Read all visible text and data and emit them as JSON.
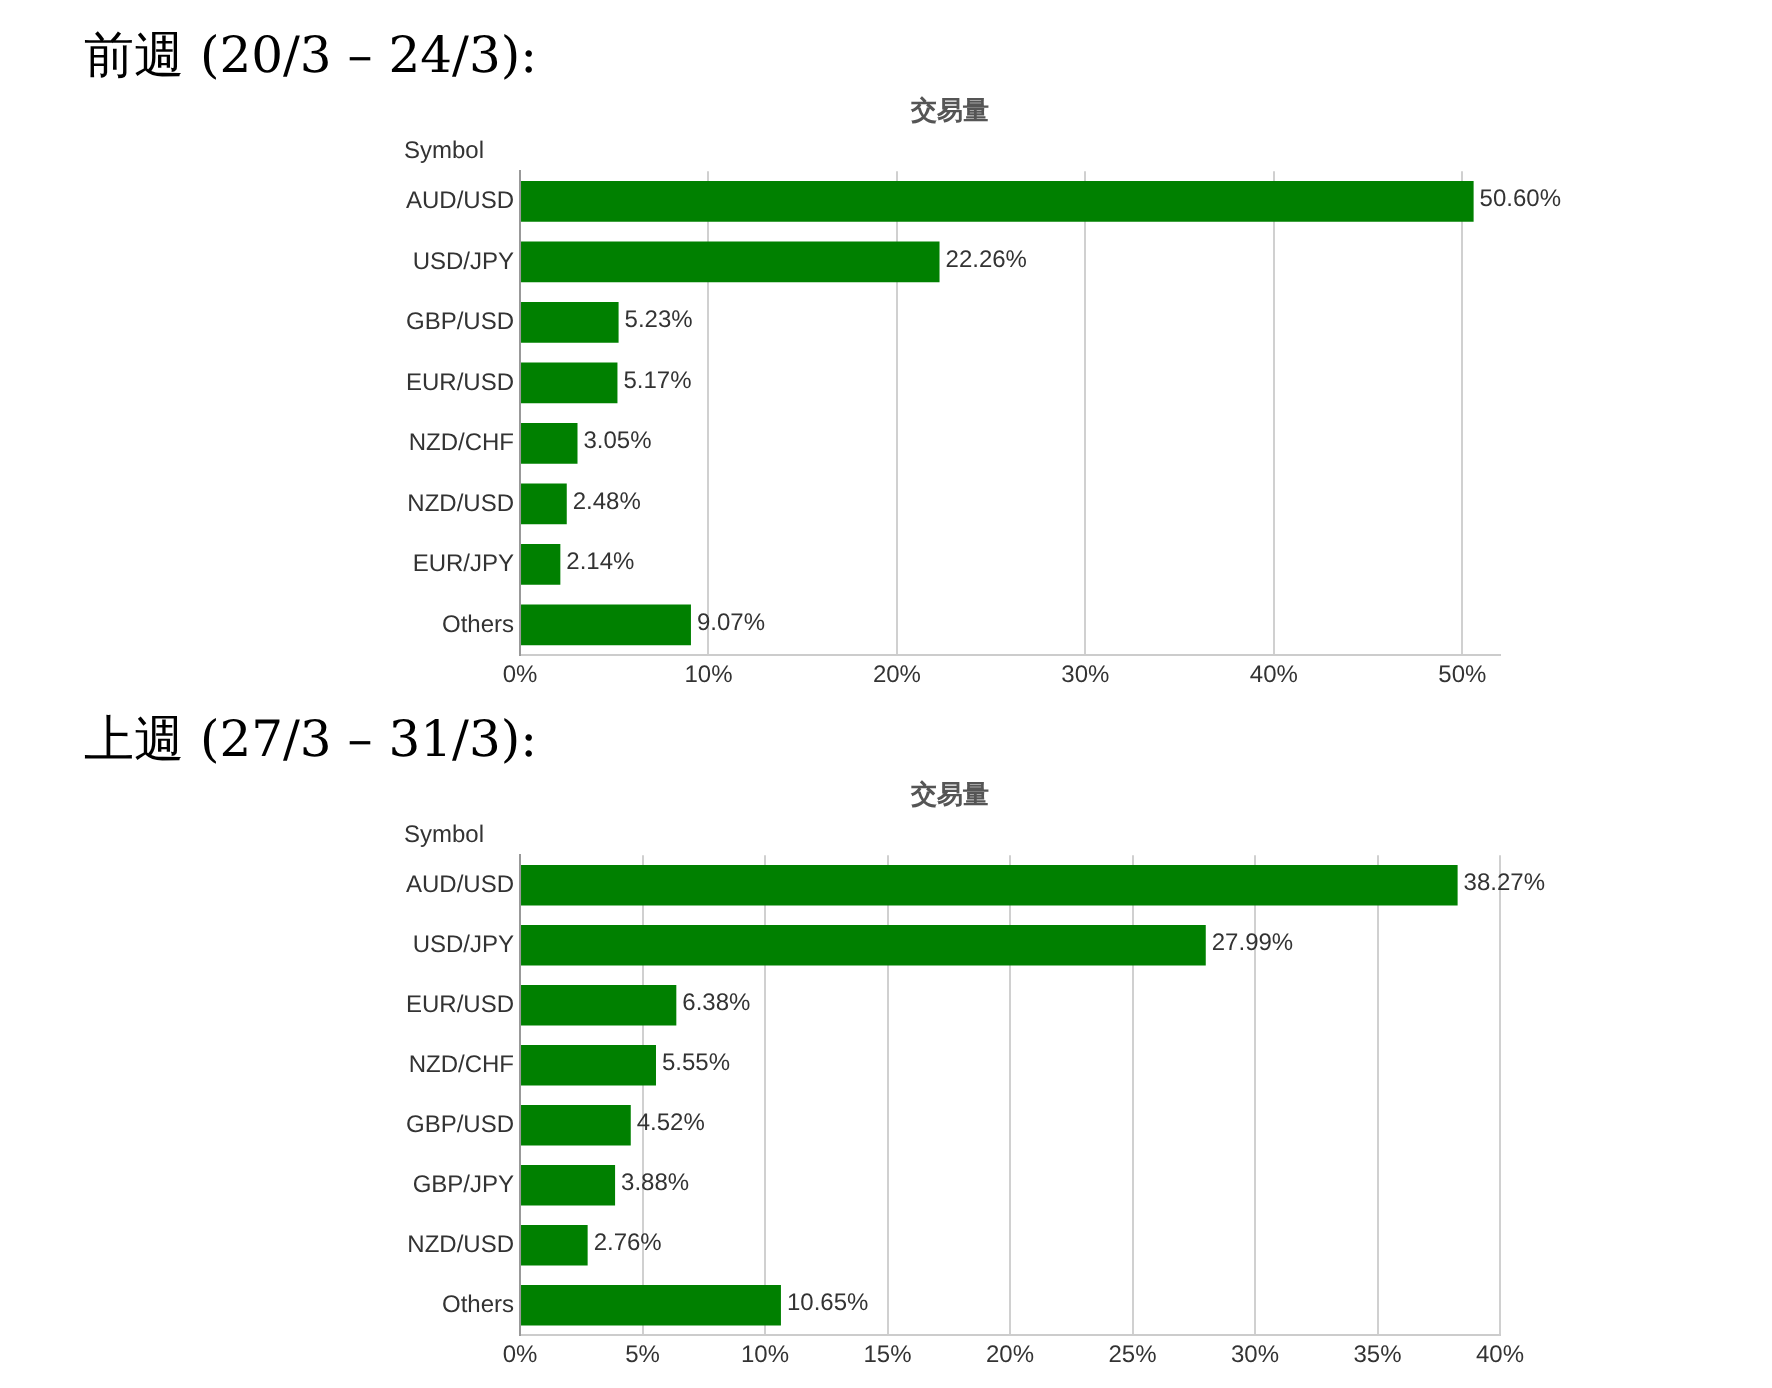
{
  "chart_data": [
    {
      "type": "bar",
      "orientation": "horizontal",
      "title": "前週 (20/3 – 24/3):",
      "subtitle": "交易量",
      "ylabel": "Symbol",
      "categories": [
        "AUD/USD",
        "USD/JPY",
        "GBP/USD",
        "EUR/USD",
        "NZD/CHF",
        "NZD/USD",
        "EUR/JPY",
        "Others"
      ],
      "values": [
        50.6,
        22.26,
        5.23,
        5.17,
        3.05,
        2.48,
        2.14,
        9.07
      ],
      "value_labels": [
        "50.60%",
        "22.26%",
        "5.23%",
        "5.17%",
        "3.05%",
        "2.48%",
        "2.14%",
        "9.07%"
      ],
      "color": "#008000",
      "xlim": [
        0,
        52
      ],
      "xticks": [
        {
          "value": 0,
          "label": "0%"
        },
        {
          "value": 10,
          "label": "10%"
        },
        {
          "value": 20,
          "label": "20%"
        },
        {
          "value": 30,
          "label": "30%"
        },
        {
          "value": 40,
          "label": "40%"
        },
        {
          "value": 50,
          "label": "50%"
        }
      ],
      "grid": "x",
      "legend": false
    },
    {
      "type": "bar",
      "orientation": "horizontal",
      "title": "上週 (27/3 – 31/3):",
      "subtitle": "交易量",
      "ylabel": "Symbol",
      "categories": [
        "AUD/USD",
        "USD/JPY",
        "EUR/USD",
        "NZD/CHF",
        "GBP/USD",
        "GBP/JPY",
        "NZD/USD",
        "Others"
      ],
      "values": [
        38.27,
        27.99,
        6.38,
        5.55,
        4.52,
        3.88,
        2.76,
        10.65
      ],
      "value_labels": [
        "38.27%",
        "27.99%",
        "6.38%",
        "5.55%",
        "4.52%",
        "3.88%",
        "2.76%",
        "10.65%"
      ],
      "color": "#008000",
      "xlim": [
        0,
        40
      ],
      "xticks": [
        {
          "value": 0,
          "label": "0%"
        },
        {
          "value": 5,
          "label": "5%"
        },
        {
          "value": 10,
          "label": "10%"
        },
        {
          "value": 15,
          "label": "15%"
        },
        {
          "value": 20,
          "label": "20%"
        },
        {
          "value": 25,
          "label": "25%"
        },
        {
          "value": 30,
          "label": "30%"
        },
        {
          "value": 35,
          "label": "35%"
        },
        {
          "value": 40,
          "label": "40%"
        }
      ],
      "grid": "x",
      "legend": false
    }
  ]
}
